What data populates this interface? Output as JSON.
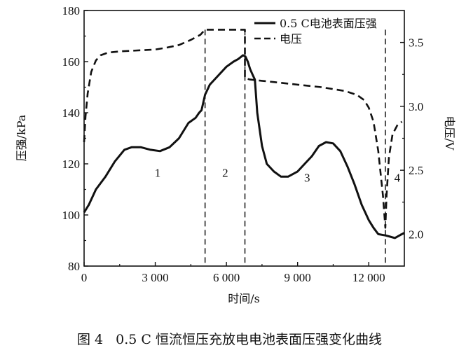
{
  "chart_data": {
    "type": "line",
    "title": "",
    "xlabel": "时间/s",
    "ylabel": "压强/kPa",
    "y2label": "电压/V",
    "xlim": [
      0,
      13500
    ],
    "ylim": [
      80,
      180
    ],
    "y2lim": [
      1.75,
      3.75
    ],
    "xticks": [
      0,
      3000,
      6000,
      9000,
      12000
    ],
    "xtick_labels": [
      "0",
      "3 000",
      "6 000",
      "9 000",
      "12 000"
    ],
    "yticks": [
      80,
      100,
      120,
      140,
      160,
      180
    ],
    "ytick_labels": [
      "80",
      "100",
      "120",
      "140",
      "160",
      "180"
    ],
    "y2ticks": [
      2.0,
      2.5,
      3.0,
      3.5
    ],
    "y2tick_labels": [
      "2.0",
      "2.5",
      "3.0",
      "3.5"
    ],
    "legend": {
      "position": "top-right",
      "entries": [
        "0.5 C电池表面压强",
        "电压"
      ]
    },
    "series": [
      {
        "name": "0.5 C电池表面压强",
        "axis": "left",
        "style": "solid",
        "x": [
          0,
          200,
          500,
          900,
          1300,
          1700,
          2000,
          2400,
          2800,
          3200,
          3600,
          4000,
          4400,
          4700,
          4850,
          4950,
          5100,
          5300,
          5600,
          6000,
          6300,
          6500,
          6700,
          6800,
          6900,
          7000,
          7100,
          7200,
          7300,
          7500,
          7700,
          8000,
          8300,
          8600,
          9000,
          9300,
          9600,
          9900,
          10200,
          10500,
          10800,
          11100,
          11400,
          11700,
          12000,
          12200,
          12400,
          12700,
          12900,
          13100,
          13300,
          13500
        ],
        "y": [
          101,
          104,
          110,
          115,
          121,
          125.5,
          126.5,
          126.5,
          125.5,
          125,
          126.5,
          130,
          136,
          138,
          140,
          141,
          147,
          151,
          154,
          158,
          160,
          161,
          162.5,
          162,
          160,
          157,
          155,
          153,
          140,
          127,
          120,
          117,
          115,
          115,
          117,
          120,
          123,
          127,
          128.5,
          128,
          125,
          119,
          112,
          104,
          98,
          95,
          92.5,
          92,
          91.5,
          91,
          92,
          93
        ]
      },
      {
        "name": "电压",
        "axis": "right",
        "style": "dashed",
        "x": [
          0,
          60,
          150,
          300,
          500,
          700,
          1000,
          1500,
          2000,
          2500,
          3000,
          3500,
          4000,
          4500,
          4900,
          5100,
          5100,
          6780,
          6780,
          7000,
          7500,
          8000,
          9000,
          10000,
          11000,
          11500,
          11800,
          12000,
          12200,
          12400,
          12600,
          12700,
          12750,
          12850,
          13000,
          13200,
          13400
        ],
        "y": [
          2.72,
          2.92,
          3.1,
          3.27,
          3.36,
          3.4,
          3.42,
          3.43,
          3.435,
          3.44,
          3.445,
          3.46,
          3.48,
          3.52,
          3.56,
          3.6,
          3.6,
          3.6,
          3.22,
          3.21,
          3.2,
          3.19,
          3.17,
          3.15,
          3.12,
          3.09,
          3.05,
          2.99,
          2.88,
          2.65,
          2.3,
          2.05,
          2.3,
          2.6,
          2.78,
          2.85,
          2.88
        ]
      }
    ],
    "vlines": [
      5100,
      6780,
      12700
    ],
    "regions": [
      {
        "label": "1",
        "x": 3100,
        "y": 115
      },
      {
        "label": "2",
        "x": 5950,
        "y": 115
      },
      {
        "label": "3",
        "x": 9400,
        "y": 113
      },
      {
        "label": "4",
        "x": 13200,
        "y": 113
      }
    ]
  },
  "caption": {
    "figure_number": "图 4",
    "text": "0.5 C 恒流恒压充放电电池表面压强变化曲线"
  }
}
